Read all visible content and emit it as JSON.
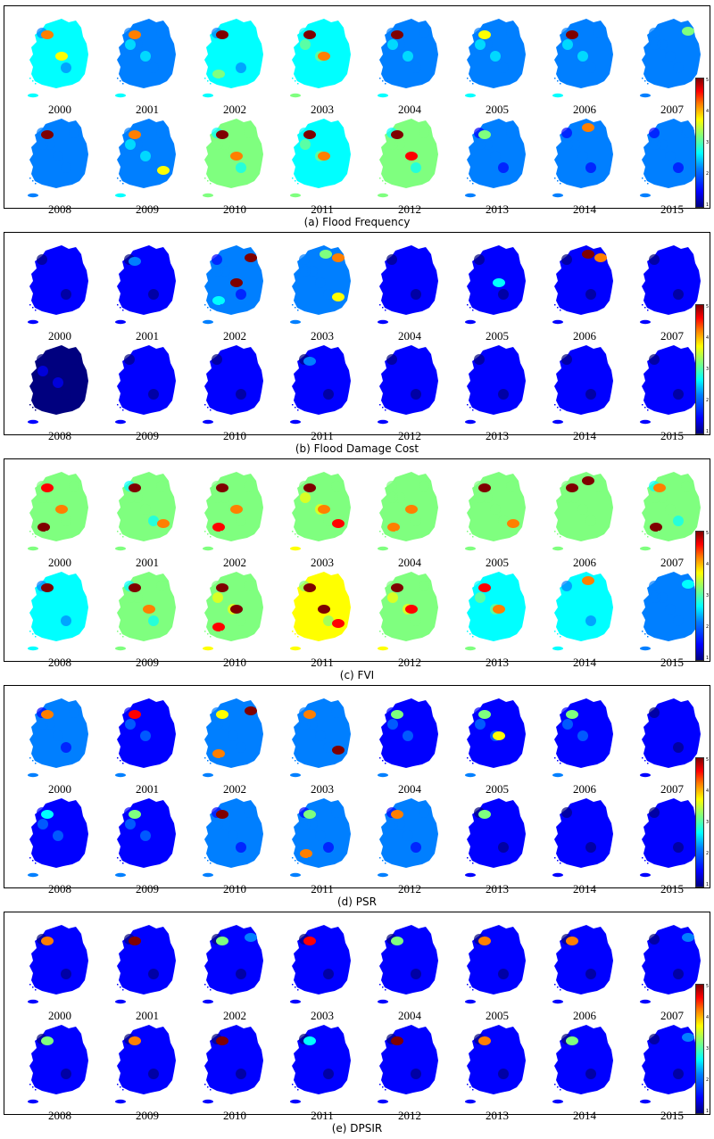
{
  "figure": {
    "years": [
      "2000",
      "2001",
      "2002",
      "2003",
      "2004",
      "2005",
      "2006",
      "2007",
      "2008",
      "2009",
      "2010",
      "2011",
      "2012",
      "2013",
      "2014",
      "2015"
    ],
    "colorbar_ticks": [
      "1",
      "2",
      "3",
      "4",
      "5"
    ],
    "colormap": [
      "#00007f",
      "#0000ff",
      "#007fff",
      "#00ffff",
      "#7fff7f",
      "#ffff00",
      "#ff7f00",
      "#ff0000",
      "#7f0000"
    ],
    "panels": [
      {
        "caption": "(a) Flood Frequency",
        "maps": [
          {
            "level": 0.35,
            "hotspots": [
              {
                "spot": "nw",
                "v": 0.75
              },
              {
                "spot": "c",
                "v": 0.6
              }
            ]
          },
          {
            "level": 0.3,
            "hotspots": [
              {
                "spot": "nw",
                "v": 0.7
              }
            ]
          },
          {
            "level": 0.35,
            "hotspots": [
              {
                "spot": "nw",
                "v": 0.95
              },
              {
                "spot": "sw",
                "v": 0.5
              }
            ]
          },
          {
            "level": 0.4,
            "hotspots": [
              {
                "spot": "nw",
                "v": 0.95
              },
              {
                "spot": "c",
                "v": 0.7
              }
            ]
          },
          {
            "level": 0.3,
            "hotspots": [
              {
                "spot": "nw",
                "v": 0.95
              }
            ]
          },
          {
            "level": 0.3,
            "hotspots": [
              {
                "spot": "nw",
                "v": 0.6
              }
            ]
          },
          {
            "level": 0.3,
            "hotspots": [
              {
                "spot": "nw",
                "v": 0.95
              }
            ]
          },
          {
            "level": 0.25,
            "hotspots": [
              {
                "spot": "ne",
                "v": 0.5
              }
            ]
          },
          {
            "level": 0.25,
            "hotspots": [
              {
                "spot": "nw",
                "v": 0.95
              }
            ]
          },
          {
            "level": 0.3,
            "hotspots": [
              {
                "spot": "nw",
                "v": 0.8
              },
              {
                "spot": "se",
                "v": 0.6
              }
            ]
          },
          {
            "level": 0.45,
            "hotspots": [
              {
                "spot": "nw",
                "v": 0.95
              },
              {
                "spot": "c",
                "v": 0.7
              }
            ]
          },
          {
            "level": 0.4,
            "hotspots": [
              {
                "spot": "nw",
                "v": 0.95
              },
              {
                "spot": "c",
                "v": 0.7
              }
            ]
          },
          {
            "level": 0.45,
            "hotspots": [
              {
                "spot": "nw",
                "v": 0.95
              },
              {
                "spot": "c",
                "v": 0.85
              }
            ]
          },
          {
            "level": 0.2,
            "hotspots": [
              {
                "spot": "nw",
                "v": 0.5
              }
            ]
          },
          {
            "level": 0.2,
            "hotspots": [
              {
                "spot": "n",
                "v": 0.75
              }
            ]
          },
          {
            "level": 0.2,
            "hotspots": [
              {
                "spot": "ne",
                "v": 0.3
              }
            ]
          }
        ]
      },
      {
        "caption": "(b) Flood Damage Cost",
        "maps": [
          {
            "level": 0.1,
            "hotspots": []
          },
          {
            "level": 0.12,
            "hotspots": [
              {
                "spot": "nw",
                "v": 0.3
              }
            ]
          },
          {
            "level": 0.2,
            "hotspots": [
              {
                "spot": "ne",
                "v": 0.95
              },
              {
                "spot": "c",
                "v": 0.95
              },
              {
                "spot": "sw",
                "v": 0.4
              }
            ]
          },
          {
            "level": 0.25,
            "hotspots": [
              {
                "spot": "ne",
                "v": 0.7
              },
              {
                "spot": "se",
                "v": 0.6
              },
              {
                "spot": "n",
                "v": 0.5
              }
            ]
          },
          {
            "level": 0.12,
            "hotspots": []
          },
          {
            "level": 0.1,
            "hotspots": [
              {
                "spot": "c",
                "v": 0.4
              }
            ]
          },
          {
            "level": 0.12,
            "hotspots": [
              {
                "spot": "n",
                "v": 0.95
              },
              {
                "spot": "ne",
                "v": 0.8
              }
            ]
          },
          {
            "level": 0.08,
            "hotspots": []
          },
          {
            "level": 0.06,
            "hotspots": []
          },
          {
            "level": 0.08,
            "hotspots": []
          },
          {
            "level": 0.12,
            "hotspots": []
          },
          {
            "level": 0.12,
            "hotspots": [
              {
                "spot": "nw",
                "v": 0.25
              }
            ]
          },
          {
            "level": 0.12,
            "hotspots": []
          },
          {
            "level": 0.1,
            "hotspots": []
          },
          {
            "level": 0.08,
            "hotspots": []
          },
          {
            "level": 0.08,
            "hotspots": []
          }
        ]
      },
      {
        "caption": "(c) FVI",
        "maps": [
          {
            "level": 0.5,
            "hotspots": [
              {
                "spot": "nw",
                "v": 0.9
              },
              {
                "spot": "sw",
                "v": 0.95
              },
              {
                "spot": "c",
                "v": 0.7
              }
            ]
          },
          {
            "level": 0.45,
            "hotspots": [
              {
                "spot": "nw",
                "v": 0.95
              },
              {
                "spot": "se",
                "v": 0.7
              }
            ]
          },
          {
            "level": 0.5,
            "hotspots": [
              {
                "spot": "nw",
                "v": 0.95
              },
              {
                "spot": "sw",
                "v": 0.9
              },
              {
                "spot": "c",
                "v": 0.7
              }
            ]
          },
          {
            "level": 0.55,
            "hotspots": [
              {
                "spot": "nw",
                "v": 0.95
              },
              {
                "spot": "se",
                "v": 0.9
              },
              {
                "spot": "c",
                "v": 0.7
              }
            ]
          },
          {
            "level": 0.5,
            "hotspots": [
              {
                "spot": "c",
                "v": 0.7
              },
              {
                "spot": "sw",
                "v": 0.7
              }
            ]
          },
          {
            "level": 0.5,
            "hotspots": [
              {
                "spot": "nw",
                "v": 0.95
              },
              {
                "spot": "se",
                "v": 0.7
              }
            ]
          },
          {
            "level": 0.5,
            "hotspots": [
              {
                "spot": "nw",
                "v": 0.95
              },
              {
                "spot": "n",
                "v": 0.95
              }
            ]
          },
          {
            "level": 0.45,
            "hotspots": [
              {
                "spot": "nw",
                "v": 0.7
              },
              {
                "spot": "sw",
                "v": 0.95
              }
            ]
          },
          {
            "level": 0.35,
            "hotspots": [
              {
                "spot": "nw",
                "v": 0.95
              }
            ]
          },
          {
            "level": 0.45,
            "hotspots": [
              {
                "spot": "nw",
                "v": 0.95
              },
              {
                "spot": "c",
                "v": 0.8
              }
            ]
          },
          {
            "level": 0.55,
            "hotspots": [
              {
                "spot": "nw",
                "v": 0.95
              },
              {
                "spot": "c",
                "v": 0.95
              },
              {
                "spot": "sw",
                "v": 0.9
              }
            ]
          },
          {
            "level": 0.6,
            "hotspots": [
              {
                "spot": "nw",
                "v": 0.95
              },
              {
                "spot": "c",
                "v": 0.95
              },
              {
                "spot": "se",
                "v": 0.9
              }
            ]
          },
          {
            "level": 0.55,
            "hotspots": [
              {
                "spot": "nw",
                "v": 0.95
              },
              {
                "spot": "c",
                "v": 0.9
              }
            ]
          },
          {
            "level": 0.4,
            "hotspots": [
              {
                "spot": "nw",
                "v": 0.9
              },
              {
                "spot": "c",
                "v": 0.7
              }
            ]
          },
          {
            "level": 0.35,
            "hotspots": [
              {
                "spot": "n",
                "v": 0.7
              }
            ]
          },
          {
            "level": 0.25,
            "hotspots": [
              {
                "spot": "ne",
                "v": 0.4
              }
            ]
          }
        ]
      },
      {
        "caption": "(d) PSR",
        "maps": [
          {
            "level": 0.2,
            "hotspots": [
              {
                "spot": "nw",
                "v": 0.7
              }
            ]
          },
          {
            "level": 0.15,
            "hotspots": [
              {
                "spot": "nw",
                "v": 0.9
              }
            ]
          },
          {
            "level": 0.25,
            "hotspots": [
              {
                "spot": "ne",
                "v": 0.95
              },
              {
                "spot": "nw",
                "v": 0.6
              },
              {
                "spot": "sw",
                "v": 0.7
              }
            ]
          },
          {
            "level": 0.25,
            "hotspots": [
              {
                "spot": "nw",
                "v": 0.8
              },
              {
                "spot": "se",
                "v": 0.95
              }
            ]
          },
          {
            "level": 0.15,
            "hotspots": [
              {
                "spot": "nw",
                "v": 0.5
              }
            ]
          },
          {
            "level": 0.15,
            "hotspots": [
              {
                "spot": "nw",
                "v": 0.5
              },
              {
                "spot": "c",
                "v": 0.6
              }
            ]
          },
          {
            "level": 0.15,
            "hotspots": [
              {
                "spot": "nw",
                "v": 0.5
              }
            ]
          },
          {
            "level": 0.12,
            "hotspots": []
          },
          {
            "level": 0.15,
            "hotspots": [
              {
                "spot": "nw",
                "v": 0.4
              }
            ]
          },
          {
            "level": 0.15,
            "hotspots": [
              {
                "spot": "nw",
                "v": 0.5
              }
            ]
          },
          {
            "level": 0.2,
            "hotspots": [
              {
                "spot": "nw",
                "v": 0.95
              }
            ]
          },
          {
            "level": 0.2,
            "hotspots": [
              {
                "spot": "nw",
                "v": 0.5
              },
              {
                "spot": "sw",
                "v": 0.8
              }
            ]
          },
          {
            "level": 0.2,
            "hotspots": [
              {
                "spot": "nw",
                "v": 0.8
              }
            ]
          },
          {
            "level": 0.12,
            "hotspots": [
              {
                "spot": "nw",
                "v": 0.45
              }
            ]
          },
          {
            "level": 0.12,
            "hotspots": []
          },
          {
            "level": 0.12,
            "hotspots": []
          }
        ]
      },
      {
        "caption": "(e) DPSIR",
        "maps": [
          {
            "level": 0.1,
            "hotspots": [
              {
                "spot": "nw",
                "v": 0.7
              }
            ]
          },
          {
            "level": 0.1,
            "hotspots": [
              {
                "spot": "nw",
                "v": 0.95
              }
            ]
          },
          {
            "level": 0.12,
            "hotspots": [
              {
                "spot": "nw",
                "v": 0.5
              },
              {
                "spot": "ne",
                "v": 0.3
              }
            ]
          },
          {
            "level": 0.1,
            "hotspots": [
              {
                "spot": "nw",
                "v": 0.9
              }
            ]
          },
          {
            "level": 0.1,
            "hotspots": [
              {
                "spot": "nw",
                "v": 0.5
              }
            ]
          },
          {
            "level": 0.1,
            "hotspots": [
              {
                "spot": "nw",
                "v": 0.8
              }
            ]
          },
          {
            "level": 0.1,
            "hotspots": [
              {
                "spot": "nw",
                "v": 0.7
              }
            ]
          },
          {
            "level": 0.1,
            "hotspots": [
              {
                "spot": "ne",
                "v": 0.3
              }
            ]
          },
          {
            "level": 0.1,
            "hotspots": [
              {
                "spot": "nw",
                "v": 0.5
              }
            ]
          },
          {
            "level": 0.1,
            "hotspots": [
              {
                "spot": "nw",
                "v": 0.75
              }
            ]
          },
          {
            "level": 0.1,
            "hotspots": [
              {
                "spot": "nw",
                "v": 0.95
              }
            ]
          },
          {
            "level": 0.1,
            "hotspots": [
              {
                "spot": "nw",
                "v": 0.35
              }
            ]
          },
          {
            "level": 0.1,
            "hotspots": [
              {
                "spot": "nw",
                "v": 0.95
              }
            ]
          },
          {
            "level": 0.1,
            "hotspots": [
              {
                "spot": "nw",
                "v": 0.7
              }
            ]
          },
          {
            "level": 0.08,
            "hotspots": [
              {
                "spot": "nw",
                "v": 0.45
              }
            ]
          },
          {
            "level": 0.08,
            "hotspots": [
              {
                "spot": "ne",
                "v": 0.3
              }
            ]
          }
        ]
      }
    ]
  }
}
